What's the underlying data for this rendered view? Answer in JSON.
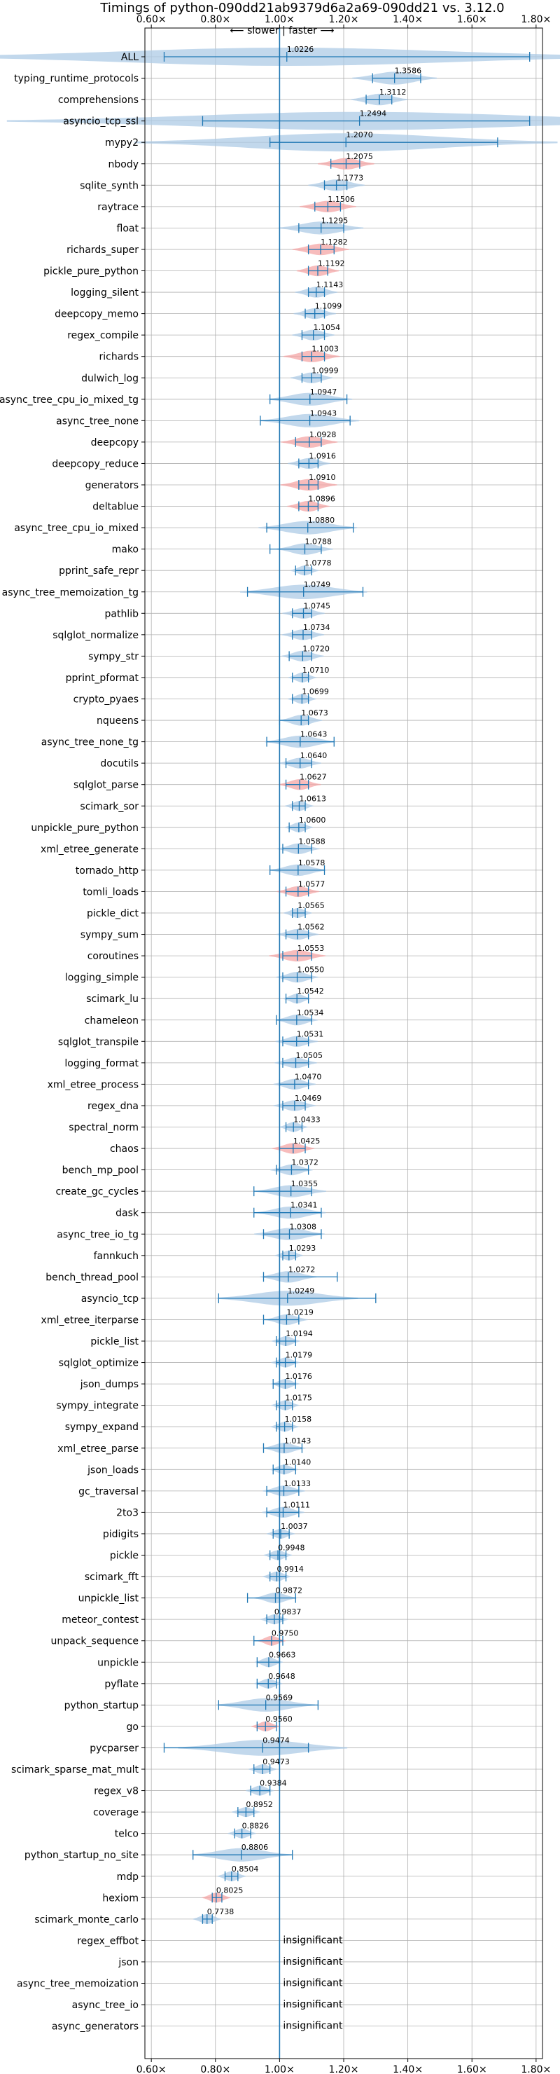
{
  "chart_data": {
    "type": "violin",
    "title": "Timings of python-090dd21ab9379d6a2a69-090dd21 vs. 3.12.0",
    "direction_label": "⟵ slower | faster ⟶",
    "xlim": [
      0.58,
      1.82
    ],
    "xticks": [
      0.6,
      0.8,
      1.0,
      1.2,
      1.4,
      1.6,
      1.8
    ],
    "xtick_labels": [
      "0.60×",
      "0.80×",
      "1.00×",
      "1.20×",
      "1.40×",
      "1.60×",
      "1.80×"
    ],
    "reference_line": 1.0,
    "grid": true,
    "colors": {
      "significant": "#1f77b4",
      "violin": "#aecbe5",
      "highlight": "#f4a6a6"
    },
    "insignificant_label": "insignificant",
    "benchmarks": [
      {
        "name": "ALL",
        "value": 1.0226,
        "min": 0.64,
        "max": 1.78,
        "spread": 0.5
      },
      {
        "name": "typing_runtime_protocols",
        "value": 1.3586,
        "min": 1.29,
        "max": 1.44,
        "spread": 0.06
      },
      {
        "name": "comprehensions",
        "value": 1.3112,
        "min": 1.27,
        "max": 1.35,
        "spread": 0.04
      },
      {
        "name": "asyncio_tcp_ssl",
        "value": 1.2494,
        "min": 0.76,
        "max": 1.78,
        "spread": 0.5
      },
      {
        "name": "mypy2",
        "value": 1.207,
        "min": 0.97,
        "max": 1.68,
        "spread": 0.3
      },
      {
        "name": "nbody",
        "value": 1.2075,
        "min": 1.16,
        "max": 1.25,
        "spread": 0.04,
        "highlight": true
      },
      {
        "name": "sqlite_synth",
        "value": 1.1773,
        "min": 1.14,
        "max": 1.21,
        "spread": 0.04
      },
      {
        "name": "raytrace",
        "value": 1.1506,
        "min": 1.11,
        "max": 1.19,
        "spread": 0.04,
        "highlight": true
      },
      {
        "name": "float",
        "value": 1.1295,
        "min": 1.06,
        "max": 1.2,
        "spread": 0.06
      },
      {
        "name": "richards_super",
        "value": 1.1282,
        "min": 1.09,
        "max": 1.17,
        "spread": 0.04,
        "highlight": true
      },
      {
        "name": "pickle_pure_python",
        "value": 1.1192,
        "min": 1.09,
        "max": 1.15,
        "spread": 0.03,
        "highlight": true
      },
      {
        "name": "logging_silent",
        "value": 1.1143,
        "min": 1.09,
        "max": 1.14,
        "spread": 0.03
      },
      {
        "name": "deepcopy_memo",
        "value": 1.1099,
        "min": 1.08,
        "max": 1.14,
        "spread": 0.03
      },
      {
        "name": "regex_compile",
        "value": 1.1054,
        "min": 1.07,
        "max": 1.14,
        "spread": 0.03
      },
      {
        "name": "richards",
        "value": 1.1003,
        "min": 1.07,
        "max": 1.14,
        "spread": 0.04,
        "highlight": true
      },
      {
        "name": "dulwich_log",
        "value": 1.0999,
        "min": 1.07,
        "max": 1.13,
        "spread": 0.03
      },
      {
        "name": "async_tree_cpu_io_mixed_tg",
        "value": 1.0947,
        "min": 0.97,
        "max": 1.21,
        "spread": 0.06
      },
      {
        "name": "async_tree_none",
        "value": 1.0943,
        "min": 0.94,
        "max": 1.22,
        "spread": 0.07
      },
      {
        "name": "deepcopy",
        "value": 1.0928,
        "min": 1.05,
        "max": 1.13,
        "spread": 0.04,
        "highlight": true
      },
      {
        "name": "deepcopy_reduce",
        "value": 1.0916,
        "min": 1.06,
        "max": 1.12,
        "spread": 0.03
      },
      {
        "name": "generators",
        "value": 1.091,
        "min": 1.06,
        "max": 1.12,
        "spread": 0.04,
        "highlight": true
      },
      {
        "name": "deltablue",
        "value": 1.0896,
        "min": 1.06,
        "max": 1.12,
        "spread": 0.03,
        "highlight": true
      },
      {
        "name": "async_tree_cpu_io_mixed",
        "value": 1.088,
        "min": 0.96,
        "max": 1.23,
        "spread": 0.07
      },
      {
        "name": "mako",
        "value": 1.0788,
        "min": 0.97,
        "max": 1.13,
        "spread": 0.04
      },
      {
        "name": "pprint_safe_repr",
        "value": 1.0778,
        "min": 1.05,
        "max": 1.1,
        "spread": 0.02
      },
      {
        "name": "async_tree_memoization_tg",
        "value": 1.0749,
        "min": 0.9,
        "max": 1.26,
        "spread": 0.09
      },
      {
        "name": "pathlib",
        "value": 1.0745,
        "min": 1.04,
        "max": 1.1,
        "spread": 0.03
      },
      {
        "name": "sqlglot_normalize",
        "value": 1.0734,
        "min": 1.04,
        "max": 1.1,
        "spread": 0.03
      },
      {
        "name": "sympy_str",
        "value": 1.072,
        "min": 1.03,
        "max": 1.1,
        "spread": 0.03
      },
      {
        "name": "pprint_pformat",
        "value": 1.071,
        "min": 1.04,
        "max": 1.09,
        "spread": 0.02
      },
      {
        "name": "crypto_pyaes",
        "value": 1.0699,
        "min": 1.04,
        "max": 1.09,
        "spread": 0.02
      },
      {
        "name": "nqueens",
        "value": 1.0673,
        "min": 1.0,
        "max": 1.09,
        "spread": 0.03
      },
      {
        "name": "async_tree_none_tg",
        "value": 1.0643,
        "min": 0.96,
        "max": 1.17,
        "spread": 0.05
      },
      {
        "name": "docutils",
        "value": 1.064,
        "min": 1.02,
        "max": 1.1,
        "spread": 0.03
      },
      {
        "name": "sqlglot_parse",
        "value": 1.0627,
        "min": 1.02,
        "max": 1.09,
        "spread": 0.03,
        "highlight": true
      },
      {
        "name": "scimark_sor",
        "value": 1.0613,
        "min": 1.04,
        "max": 1.08,
        "spread": 0.02
      },
      {
        "name": "unpickle_pure_python",
        "value": 1.06,
        "min": 1.03,
        "max": 1.08,
        "spread": 0.02
      },
      {
        "name": "xml_etree_generate",
        "value": 1.0588,
        "min": 1.01,
        "max": 1.1,
        "spread": 0.03
      },
      {
        "name": "tornado_http",
        "value": 1.0578,
        "min": 0.97,
        "max": 1.14,
        "spread": 0.04
      },
      {
        "name": "tomli_loads",
        "value": 1.0577,
        "min": 1.02,
        "max": 1.09,
        "spread": 0.03,
        "highlight": true
      },
      {
        "name": "pickle_dict",
        "value": 1.0565,
        "min": 1.04,
        "max": 1.08,
        "spread": 0.02
      },
      {
        "name": "sympy_sum",
        "value": 1.0562,
        "min": 1.02,
        "max": 1.09,
        "spread": 0.03
      },
      {
        "name": "coroutines",
        "value": 1.0553,
        "min": 1.01,
        "max": 1.1,
        "spread": 0.04,
        "highlight": true
      },
      {
        "name": "logging_simple",
        "value": 1.055,
        "min": 1.01,
        "max": 1.1,
        "spread": 0.03
      },
      {
        "name": "scimark_lu",
        "value": 1.0542,
        "min": 1.02,
        "max": 1.09,
        "spread": 0.02
      },
      {
        "name": "chameleon",
        "value": 1.0534,
        "min": 0.99,
        "max": 1.1,
        "spread": 0.03
      },
      {
        "name": "sqlglot_transpile",
        "value": 1.0531,
        "min": 1.01,
        "max": 1.09,
        "spread": 0.03
      },
      {
        "name": "logging_format",
        "value": 1.0505,
        "min": 1.01,
        "max": 1.09,
        "spread": 0.03
      },
      {
        "name": "xml_etree_process",
        "value": 1.047,
        "min": 1.0,
        "max": 1.09,
        "spread": 0.03
      },
      {
        "name": "regex_dna",
        "value": 1.0469,
        "min": 1.01,
        "max": 1.08,
        "spread": 0.03
      },
      {
        "name": "spectral_norm",
        "value": 1.0433,
        "min": 1.02,
        "max": 1.07,
        "spread": 0.02
      },
      {
        "name": "chaos",
        "value": 1.0425,
        "min": 1.0,
        "max": 1.08,
        "spread": 0.03,
        "highlight": true
      },
      {
        "name": "bench_mp_pool",
        "value": 1.0372,
        "min": 0.99,
        "max": 1.09,
        "spread": 0.03
      },
      {
        "name": "create_gc_cycles",
        "value": 1.0355,
        "min": 0.92,
        "max": 1.1,
        "spread": 0.05
      },
      {
        "name": "dask",
        "value": 1.0341,
        "min": 0.92,
        "max": 1.13,
        "spread": 0.05
      },
      {
        "name": "async_tree_io_tg",
        "value": 1.0308,
        "min": 0.95,
        "max": 1.13,
        "spread": 0.05
      },
      {
        "name": "fannkuch",
        "value": 1.0293,
        "min": 1.01,
        "max": 1.05,
        "spread": 0.02
      },
      {
        "name": "bench_thread_pool",
        "value": 1.0272,
        "min": 0.95,
        "max": 1.18,
        "spread": 0.04
      },
      {
        "name": "asyncio_tcp",
        "value": 1.0249,
        "min": 0.81,
        "max": 1.3,
        "spread": 0.1
      },
      {
        "name": "xml_etree_iterparse",
        "value": 1.0219,
        "min": 0.95,
        "max": 1.06,
        "spread": 0.03
      },
      {
        "name": "pickle_list",
        "value": 1.0194,
        "min": 0.99,
        "max": 1.05,
        "spread": 0.02
      },
      {
        "name": "sqlglot_optimize",
        "value": 1.0179,
        "min": 0.99,
        "max": 1.05,
        "spread": 0.02
      },
      {
        "name": "json_dumps",
        "value": 1.0176,
        "min": 0.98,
        "max": 1.05,
        "spread": 0.02
      },
      {
        "name": "sympy_integrate",
        "value": 1.0175,
        "min": 0.99,
        "max": 1.04,
        "spread": 0.02
      },
      {
        "name": "sympy_expand",
        "value": 1.0158,
        "min": 0.99,
        "max": 1.04,
        "spread": 0.02
      },
      {
        "name": "xml_etree_parse",
        "value": 1.0143,
        "min": 0.95,
        "max": 1.07,
        "spread": 0.03
      },
      {
        "name": "json_loads",
        "value": 1.014,
        "min": 0.98,
        "max": 1.05,
        "spread": 0.02
      },
      {
        "name": "gc_traversal",
        "value": 1.0133,
        "min": 0.96,
        "max": 1.06,
        "spread": 0.03
      },
      {
        "name": "2to3",
        "value": 1.0111,
        "min": 0.96,
        "max": 1.06,
        "spread": 0.03
      },
      {
        "name": "pidigits",
        "value": 1.0037,
        "min": 0.98,
        "max": 1.03,
        "spread": 0.02
      },
      {
        "name": "pickle",
        "value": 0.9948,
        "min": 0.97,
        "max": 1.02,
        "spread": 0.02
      },
      {
        "name": "scimark_fft",
        "value": 0.9914,
        "min": 0.97,
        "max": 1.02,
        "spread": 0.02
      },
      {
        "name": "unpickle_list",
        "value": 0.9872,
        "min": 0.9,
        "max": 1.05,
        "spread": 0.03
      },
      {
        "name": "meteor_contest",
        "value": 0.9837,
        "min": 0.96,
        "max": 1.01,
        "spread": 0.02
      },
      {
        "name": "unpack_sequence",
        "value": 0.975,
        "min": 0.92,
        "max": 1.01,
        "spread": 0.02,
        "highlight": true
      },
      {
        "name": "unpickle",
        "value": 0.9663,
        "min": 0.93,
        "max": 1.0,
        "spread": 0.02
      },
      {
        "name": "pyflate",
        "value": 0.9648,
        "min": 0.93,
        "max": 0.99,
        "spread": 0.02
      },
      {
        "name": "python_startup",
        "value": 0.9569,
        "min": 0.81,
        "max": 1.12,
        "spread": 0.07
      },
      {
        "name": "go",
        "value": 0.956,
        "min": 0.93,
        "max": 0.99,
        "spread": 0.02,
        "highlight": true
      },
      {
        "name": "pycparser",
        "value": 0.9474,
        "min": 0.64,
        "max": 1.09,
        "spread": 0.12
      },
      {
        "name": "scimark_sparse_mat_mult",
        "value": 0.9473,
        "min": 0.92,
        "max": 0.97,
        "spread": 0.02
      },
      {
        "name": "regex_v8",
        "value": 0.9384,
        "min": 0.91,
        "max": 0.97,
        "spread": 0.02
      },
      {
        "name": "coverage",
        "value": 0.8952,
        "min": 0.87,
        "max": 0.92,
        "spread": 0.02
      },
      {
        "name": "telco",
        "value": 0.8826,
        "min": 0.86,
        "max": 0.91,
        "spread": 0.02
      },
      {
        "name": "python_startup_no_site",
        "value": 0.8806,
        "min": 0.73,
        "max": 1.04,
        "spread": 0.07
      },
      {
        "name": "mdp",
        "value": 0.8504,
        "min": 0.83,
        "max": 0.87,
        "spread": 0.02
      },
      {
        "name": "hexiom",
        "value": 0.8025,
        "min": 0.79,
        "max": 0.82,
        "spread": 0.02,
        "highlight": true
      },
      {
        "name": "scimark_monte_carlo",
        "value": 0.7738,
        "min": 0.76,
        "max": 0.79,
        "spread": 0.02
      },
      {
        "name": "regex_effbot",
        "insignificant": true
      },
      {
        "name": "json",
        "insignificant": true
      },
      {
        "name": "async_tree_memoization",
        "insignificant": true
      },
      {
        "name": "async_tree_io",
        "insignificant": true
      },
      {
        "name": "async_generators",
        "insignificant": true
      }
    ]
  }
}
